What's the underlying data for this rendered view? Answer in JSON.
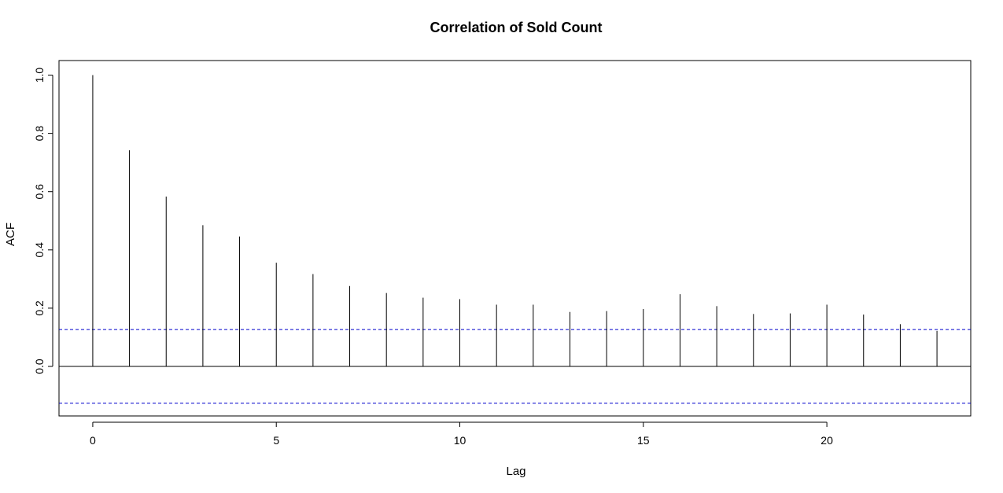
{
  "chart_data": {
    "type": "bar",
    "title": "Correlation of Sold Count",
    "xlabel": "Lag",
    "ylabel": "ACF",
    "x": [
      0,
      1,
      2,
      3,
      4,
      5,
      6,
      7,
      8,
      9,
      10,
      11,
      12,
      13,
      14,
      15,
      16,
      17,
      18,
      19,
      20,
      21,
      22,
      23
    ],
    "values": [
      1.0,
      0.742,
      0.583,
      0.485,
      0.446,
      0.356,
      0.317,
      0.276,
      0.252,
      0.236,
      0.231,
      0.212,
      0.212,
      0.187,
      0.19,
      0.197,
      0.248,
      0.207,
      0.18,
      0.182,
      0.212,
      0.178,
      0.145,
      0.122
    ],
    "confidence_bound": 0.1265,
    "xlim": [
      -0.92,
      23.92
    ],
    "ylim": [
      -0.17,
      1.05
    ],
    "xticks": [
      0,
      5,
      10,
      15,
      20
    ],
    "yticks": [
      0.0,
      0.2,
      0.4,
      0.6,
      0.8,
      1.0
    ],
    "ytick_labels": [
      "0.0",
      "0.2",
      "0.4",
      "0.6",
      "0.8",
      "1.0"
    ],
    "grid": false,
    "legend": "none",
    "colors": {
      "bars": "#000000",
      "zero_line": "#000000",
      "confidence": "#0000cc"
    }
  }
}
